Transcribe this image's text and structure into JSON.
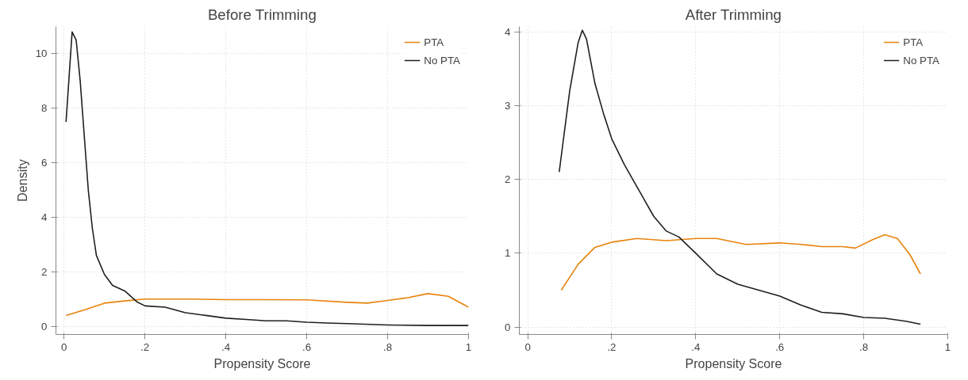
{
  "chart_data": [
    {
      "type": "line",
      "title": "Before Trimming",
      "xlabel": "Propensity Score",
      "ylabel": "Density",
      "xlim": [
        -0.02,
        1.0
      ],
      "ylim": [
        -0.3,
        11
      ],
      "xticks": [
        {
          "value": 0,
          "label": "0"
        },
        {
          "value": 0.2,
          "label": ".2"
        },
        {
          "value": 0.4,
          "label": ".4"
        },
        {
          "value": 0.6,
          "label": ".6"
        },
        {
          "value": 0.8,
          "label": ".8"
        },
        {
          "value": 1,
          "label": "1"
        }
      ],
      "yticks": [
        0,
        2,
        4,
        6,
        8,
        10
      ],
      "grid": true,
      "legend": "top right",
      "series": [
        {
          "name": "PTA",
          "color": "#e8830c",
          "x": [
            0.005,
            0.05,
            0.1,
            0.15,
            0.2,
            0.3,
            0.4,
            0.5,
            0.6,
            0.7,
            0.75,
            0.8,
            0.85,
            0.9,
            0.95,
            1.0
          ],
          "values": [
            0.4,
            0.6,
            0.85,
            0.93,
            1.0,
            1.0,
            0.98,
            0.98,
            0.97,
            0.88,
            0.85,
            0.95,
            1.05,
            1.2,
            1.1,
            0.7
          ]
        },
        {
          "name": "No PTA",
          "color": "#1f1f1f",
          "x": [
            0.005,
            0.02,
            0.03,
            0.04,
            0.05,
            0.06,
            0.07,
            0.08,
            0.1,
            0.12,
            0.15,
            0.18,
            0.2,
            0.25,
            0.3,
            0.35,
            0.4,
            0.45,
            0.5,
            0.55,
            0.6,
            0.65,
            0.7,
            0.8,
            0.9,
            1.0
          ],
          "values": [
            7.5,
            10.8,
            10.5,
            9,
            7,
            5,
            3.6,
            2.6,
            1.9,
            1.5,
            1.3,
            0.9,
            0.75,
            0.7,
            0.5,
            0.4,
            0.3,
            0.25,
            0.2,
            0.2,
            0.15,
            0.12,
            0.1,
            0.05,
            0.03,
            0.03
          ]
        }
      ]
    },
    {
      "type": "line",
      "title": "After Trimming",
      "xlabel": "Propensity Score",
      "xlim": [
        -0.02,
        1.0
      ],
      "ylim": [
        -0.1,
        4.07
      ],
      "xticks": [
        {
          "value": 0,
          "label": "0"
        },
        {
          "value": 0.2,
          "label": ".2"
        },
        {
          "value": 0.4,
          "label": ".4"
        },
        {
          "value": 0.6,
          "label": ".6"
        },
        {
          "value": 0.8,
          "label": ".8"
        },
        {
          "value": 1,
          "label": "1"
        }
      ],
      "yticks": [
        0,
        1,
        2,
        3,
        4
      ],
      "grid": true,
      "legend": "top right",
      "series": [
        {
          "name": "PTA",
          "color": "#e8830c",
          "x": [
            0.08,
            0.12,
            0.16,
            0.2,
            0.26,
            0.33,
            0.4,
            0.45,
            0.52,
            0.6,
            0.65,
            0.7,
            0.75,
            0.78,
            0.82,
            0.85,
            0.88,
            0.91,
            0.935
          ],
          "values": [
            0.5,
            0.85,
            1.08,
            1.15,
            1.2,
            1.17,
            1.2,
            1.2,
            1.12,
            1.14,
            1.12,
            1.09,
            1.09,
            1.07,
            1.18,
            1.25,
            1.2,
            0.98,
            0.72
          ]
        },
        {
          "name": "No PTA",
          "color": "#1f1f1f",
          "x": [
            0.075,
            0.1,
            0.12,
            0.13,
            0.14,
            0.16,
            0.18,
            0.2,
            0.23,
            0.26,
            0.3,
            0.33,
            0.36,
            0.4,
            0.45,
            0.5,
            0.55,
            0.6,
            0.65,
            0.7,
            0.75,
            0.8,
            0.85,
            0.9,
            0.935
          ],
          "values": [
            2.1,
            3.2,
            3.85,
            4.02,
            3.9,
            3.3,
            2.9,
            2.55,
            2.2,
            1.9,
            1.5,
            1.3,
            1.22,
            1.0,
            0.72,
            0.58,
            0.5,
            0.42,
            0.3,
            0.2,
            0.18,
            0.13,
            0.12,
            0.08,
            0.04
          ]
        }
      ]
    }
  ]
}
